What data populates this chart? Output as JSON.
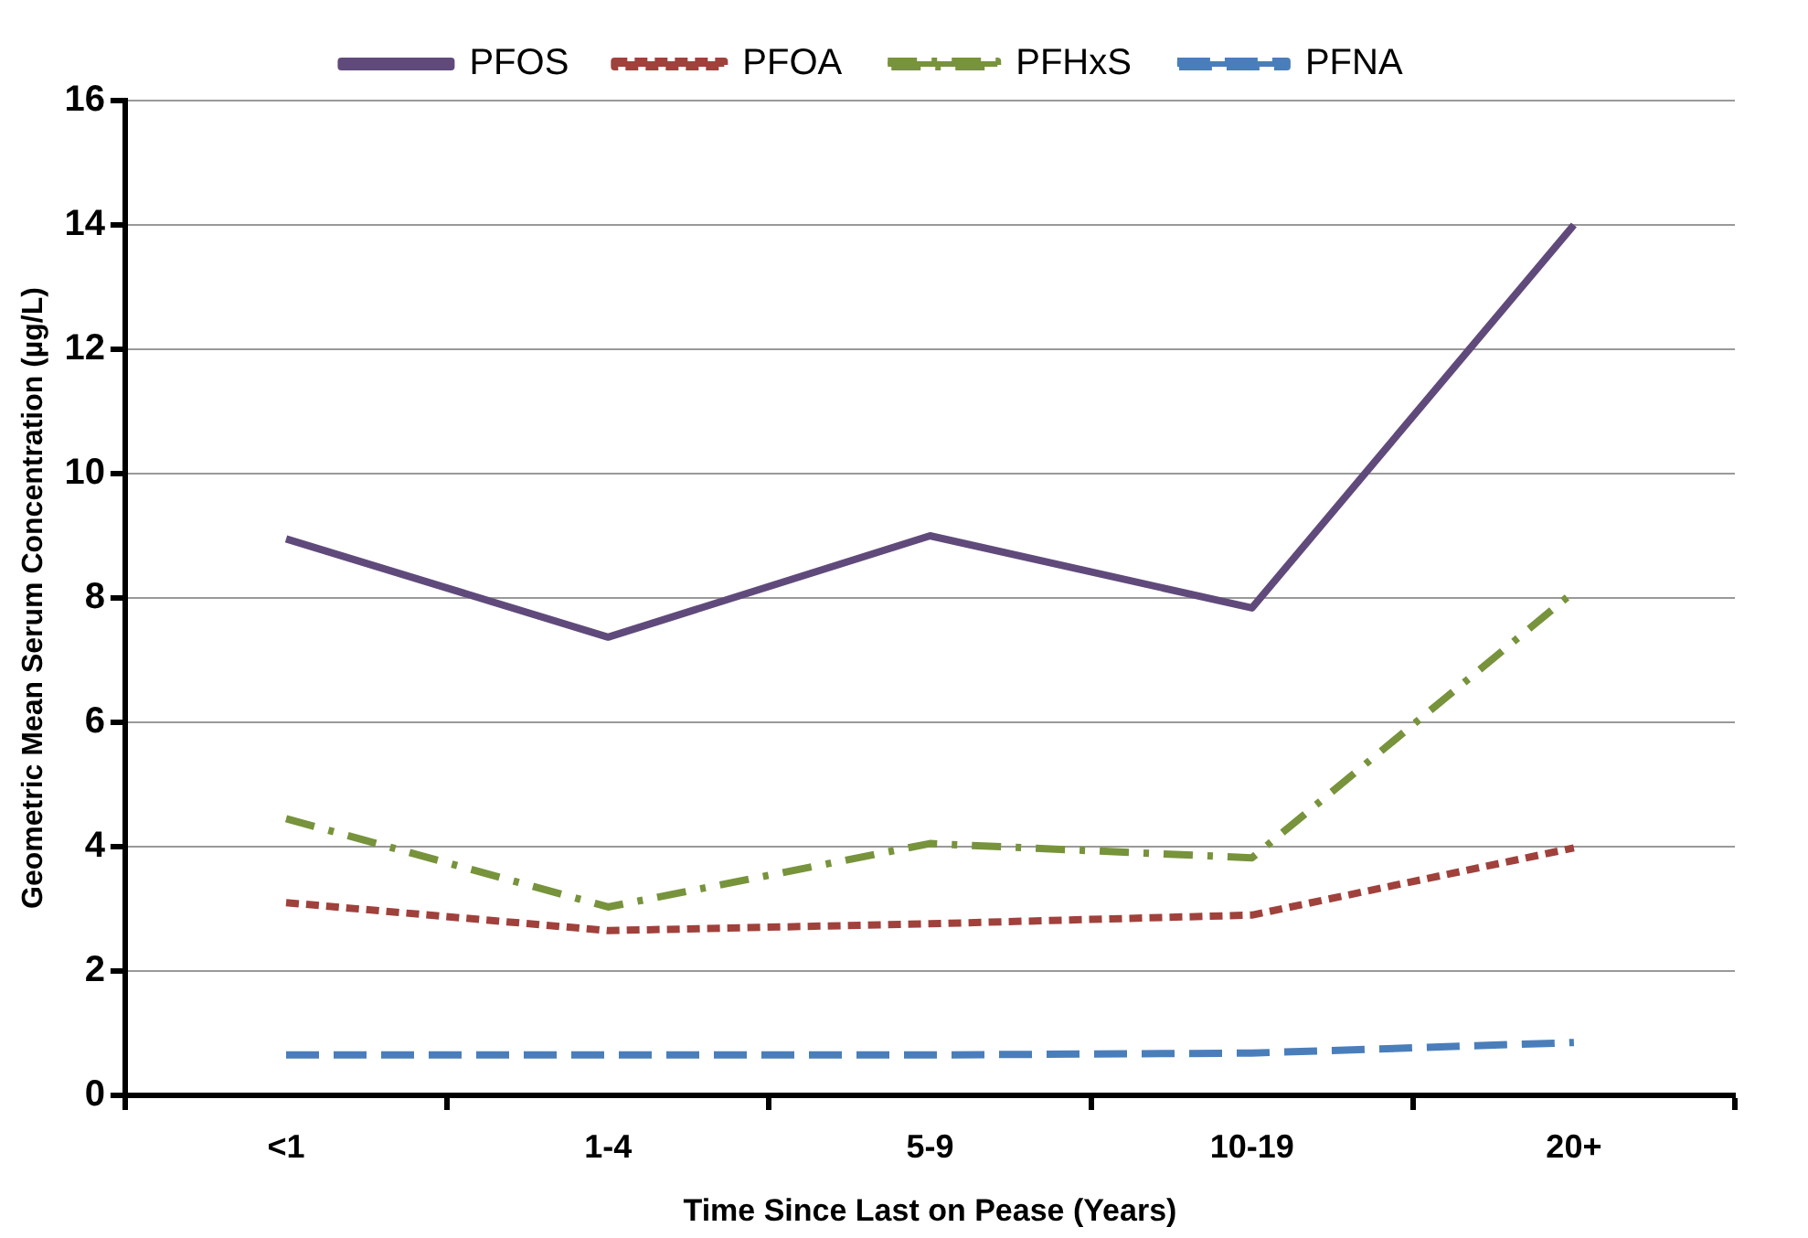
{
  "chart_data": {
    "type": "line",
    "xlabel": "Time Since Last on Pease (Years)",
    "ylabel": "Geometric Mean Serum Concentration (µg/L)",
    "categories": [
      "<1",
      "1-4",
      "5-9",
      "10-19",
      "20+"
    ],
    "series": [
      {
        "name": "PFOS",
        "color": "#604a7b",
        "line_style": "solid",
        "values": [
          8.95,
          7.37,
          9.0,
          7.84,
          14.0
        ]
      },
      {
        "name": "PFOA",
        "color": "#a0413c",
        "line_style": "dotted",
        "values": [
          3.1,
          2.65,
          2.76,
          2.9,
          3.98
        ]
      },
      {
        "name": "PFHxS",
        "color": "#77933c",
        "line_style": "dashdot",
        "values": [
          4.45,
          3.03,
          4.05,
          3.82,
          8.1
        ]
      },
      {
        "name": "PFNA",
        "color": "#4a7ebb",
        "line_style": "dashed",
        "values": [
          0.65,
          0.65,
          0.65,
          0.68,
          0.85
        ]
      }
    ],
    "ylim": [
      0,
      16
    ],
    "yticks": [
      0,
      2,
      4,
      6,
      8,
      10,
      12,
      14,
      16
    ],
    "grid": "y",
    "legend": "top",
    "marker": "none"
  }
}
